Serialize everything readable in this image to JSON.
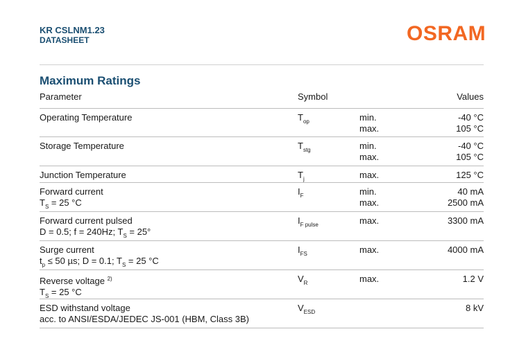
{
  "header": {
    "product": "KR CSLNM1.23",
    "doc_type": "DATASHEET",
    "logo_text": "OSRAM",
    "brand_color": "#f26722",
    "title_color": "#1b4f72"
  },
  "section": {
    "title": "Maximum Ratings"
  },
  "table": {
    "columns": {
      "parameter": "Parameter",
      "symbol": "Symbol",
      "values": "Values"
    },
    "rows": [
      {
        "param": "Operating Temperature",
        "sym": "T",
        "sub": "op",
        "conds": [
          "min.",
          "max."
        ],
        "vals": [
          "-40 °C",
          "105 °C"
        ]
      },
      {
        "param": "Storage Temperature",
        "sym": "T",
        "sub": "stg",
        "conds": [
          "min.",
          "max."
        ],
        "vals": [
          "-40 °C",
          "105 °C"
        ]
      },
      {
        "param": "Junction Temperature",
        "sym": "T",
        "sub": "j",
        "conds": [
          "max."
        ],
        "vals": [
          "125 °C"
        ]
      },
      {
        "param": "Forward current",
        "param2_pre": "T",
        "param2_sub": "S",
        "param2_post": " = 25 °C",
        "sym": "I",
        "sub": "F",
        "conds": [
          "min.",
          "max."
        ],
        "vals": [
          "40 mA",
          "2500 mA"
        ]
      },
      {
        "param": "Forward current pulsed",
        "param2_pre": "D = 0.5; f = 240Hz; T",
        "param2_sub": "S",
        "param2_post": " = 25°",
        "sym": "I",
        "sub": "F pulse",
        "conds": [
          "max."
        ],
        "vals": [
          "3300 mA"
        ]
      },
      {
        "param": "Surge current",
        "param2_pre": "t",
        "param2_sub": "p",
        "param2_mid": " ≤ 50 µs; D = 0.1; T",
        "param2_sub2": "S",
        "param2_post": " = 25 °C",
        "sym": "I",
        "sub": "FS",
        "conds": [
          "max."
        ],
        "vals": [
          "4000 mA"
        ]
      },
      {
        "param": "Reverse voltage",
        "param_sup": "2)",
        "param2_pre": "T",
        "param2_sub": "S",
        "param2_post": " = 25 °C",
        "sym": "V",
        "sub": "R",
        "conds": [
          "max."
        ],
        "vals": [
          "1.2 V"
        ]
      },
      {
        "param": "ESD withstand voltage",
        "param2_pre": "acc. to ANSI/ESDA/JEDEC JS-001 (HBM, Class 3B)",
        "sym": "V",
        "sub": "ESD",
        "conds": [],
        "vals": [
          "8 kV"
        ]
      }
    ]
  }
}
